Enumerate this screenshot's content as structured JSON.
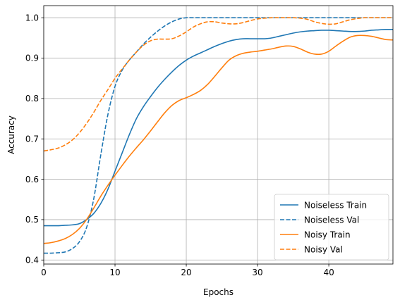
{
  "chart_data": {
    "type": "line",
    "title": "",
    "xlabel": "Epochs",
    "ylabel": "Accuracy",
    "xlim": [
      0,
      49
    ],
    "ylim": [
      0.39,
      1.03
    ],
    "x_ticks": [
      0,
      10,
      20,
      30,
      40
    ],
    "y_ticks": [
      0.4,
      0.5,
      0.6,
      0.7,
      0.8,
      0.9,
      1.0
    ],
    "y_tick_labels": [
      "0.4",
      "0.5",
      "0.6",
      "0.7",
      "0.8",
      "0.9",
      "1.0"
    ],
    "grid": true,
    "legend_position": "lower-right",
    "x": [
      0,
      1,
      2,
      3,
      4,
      5,
      6,
      7,
      8,
      9,
      10,
      11,
      12,
      13,
      14,
      15,
      16,
      17,
      18,
      19,
      20,
      21,
      22,
      23,
      24,
      25,
      26,
      27,
      28,
      29,
      30,
      31,
      32,
      33,
      34,
      35,
      36,
      37,
      38,
      39,
      40,
      41,
      42,
      43,
      44,
      45,
      46,
      47,
      48,
      49
    ],
    "series": [
      {
        "name": "Noiseless Train",
        "color": "#1f77b4",
        "dash": "solid",
        "values": [
          0.485,
          0.485,
          0.485,
          0.486,
          0.487,
          0.49,
          0.5,
          0.515,
          0.54,
          0.575,
          0.62,
          0.665,
          0.71,
          0.75,
          0.78,
          0.805,
          0.828,
          0.848,
          0.866,
          0.882,
          0.895,
          0.905,
          0.913,
          0.921,
          0.929,
          0.936,
          0.942,
          0.946,
          0.948,
          0.948,
          0.948,
          0.948,
          0.95,
          0.954,
          0.958,
          0.962,
          0.965,
          0.967,
          0.968,
          0.969,
          0.969,
          0.968,
          0.967,
          0.966,
          0.966,
          0.967,
          0.969,
          0.97,
          0.971,
          0.971
        ]
      },
      {
        "name": "Noiseless Val",
        "color": "#1f77b4",
        "dash": "dashed",
        "values": [
          0.417,
          0.417,
          0.418,
          0.42,
          0.428,
          0.445,
          0.48,
          0.55,
          0.66,
          0.76,
          0.83,
          0.87,
          0.895,
          0.915,
          0.935,
          0.952,
          0.967,
          0.98,
          0.99,
          0.997,
          1.0,
          1.0,
          1.0,
          1.0,
          1.0,
          1.0,
          1.0,
          1.0,
          1.0,
          1.0,
          1.0,
          1.0,
          1.0,
          1.0,
          1.0,
          1.0,
          1.0,
          1.0,
          1.0,
          1.0,
          1.0,
          1.0,
          1.0,
          1.0,
          1.0,
          1.0,
          1.0,
          1.0,
          1.0,
          1.0
        ]
      },
      {
        "name": "Noisy Train",
        "color": "#ff7f0e",
        "dash": "solid",
        "values": [
          0.441,
          0.443,
          0.447,
          0.453,
          0.463,
          0.478,
          0.5,
          0.528,
          0.558,
          0.585,
          0.61,
          0.634,
          0.657,
          0.678,
          0.698,
          0.72,
          0.743,
          0.765,
          0.783,
          0.795,
          0.802,
          0.81,
          0.82,
          0.835,
          0.855,
          0.876,
          0.895,
          0.906,
          0.912,
          0.915,
          0.917,
          0.92,
          0.923,
          0.927,
          0.93,
          0.929,
          0.923,
          0.915,
          0.91,
          0.91,
          0.917,
          0.93,
          0.942,
          0.952,
          0.956,
          0.956,
          0.954,
          0.95,
          0.946,
          0.945
        ]
      },
      {
        "name": "Noisy Val",
        "color": "#ff7f0e",
        "dash": "dashed",
        "values": [
          0.67,
          0.673,
          0.677,
          0.685,
          0.697,
          0.715,
          0.738,
          0.765,
          0.795,
          0.822,
          0.85,
          0.873,
          0.895,
          0.915,
          0.932,
          0.943,
          0.947,
          0.947,
          0.948,
          0.955,
          0.965,
          0.977,
          0.985,
          0.99,
          0.99,
          0.987,
          0.985,
          0.985,
          0.988,
          0.993,
          0.997,
          0.999,
          1.0,
          1.0,
          1.0,
          1.0,
          0.999,
          0.996,
          0.99,
          0.986,
          0.984,
          0.985,
          0.99,
          0.995,
          0.998,
          1.0,
          1.0,
          1.0,
          1.0,
          1.0
        ]
      }
    ]
  }
}
